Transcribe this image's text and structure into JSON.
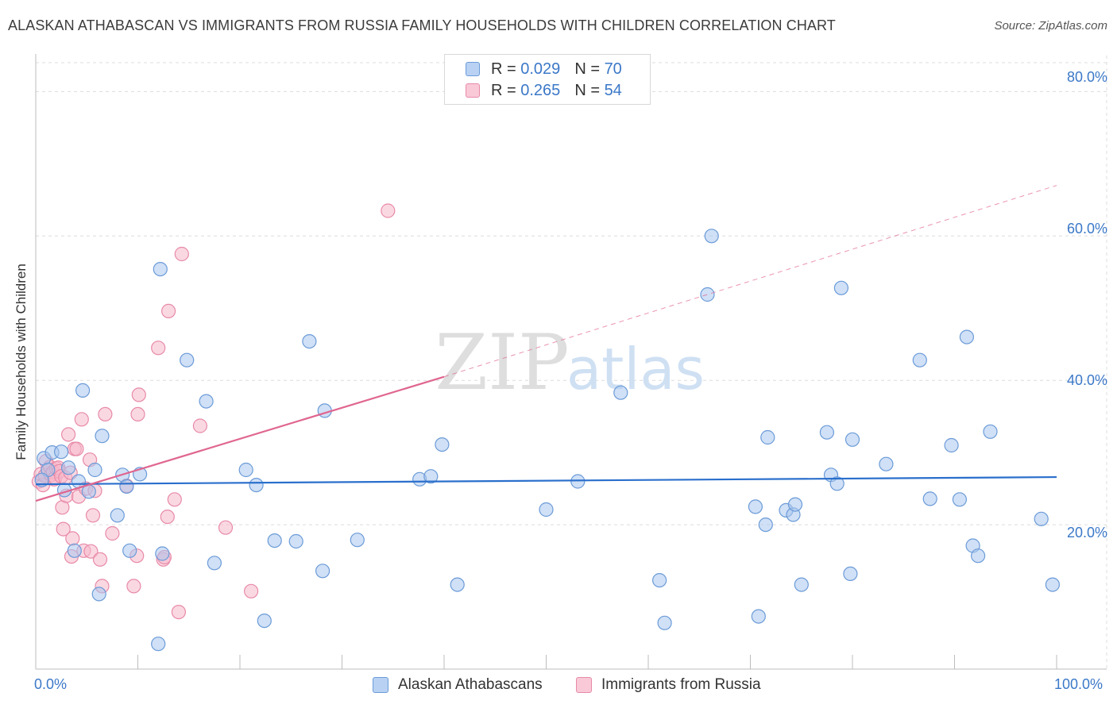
{
  "title": "ALASKAN ATHABASCAN VS IMMIGRANTS FROM RUSSIA FAMILY HOUSEHOLDS WITH CHILDREN CORRELATION CHART",
  "source": "Source: ZipAtlas.com",
  "watermark": {
    "zip": "ZIP",
    "atlas": "atlas"
  },
  "legend": {
    "r_label": "R =",
    "n_label": "N =",
    "series": [
      {
        "r": "0.029",
        "n": "70"
      },
      {
        "r": "0.265",
        "n": "54"
      }
    ]
  },
  "colors": {
    "blue_fill": "#a9c7ee",
    "blue_stroke": "#6b9bd8",
    "blue_line": "#2a6fcc",
    "pink_fill": "#f5b8cb",
    "pink_stroke": "#e88aa8",
    "pink_line": "#e06690",
    "tick_text": "#3b78c8"
  },
  "chart_data": {
    "type": "scatter",
    "title": "ALASKAN ATHABASCAN VS IMMIGRANTS FROM RUSSIA FAMILY HOUSEHOLDS WITH CHILDREN CORRELATION CHART",
    "xlabel": "",
    "ylabel": "Family Households with Children",
    "xlim": [
      0,
      100
    ],
    "ylim": [
      0,
      84
    ],
    "x_tick_labels": [
      "0.0%",
      "100.0%"
    ],
    "y_ticks": [
      20,
      40,
      60,
      80
    ],
    "y_tick_labels": [
      "20.0%",
      "40.0%",
      "60.0%",
      "80.0%"
    ],
    "grid": true,
    "legend_position": "top-center",
    "series": [
      {
        "name": "Alaskan Athabascans",
        "r": 0.029,
        "n": 70,
        "trend": {
          "x0": 0,
          "y0": 25.6,
          "x1": 100,
          "y1": 26.6,
          "dashed_extension": false
        },
        "points": [
          [
            0.8,
            29.2
          ],
          [
            1.2,
            27.6
          ],
          [
            1.6,
            30.0
          ],
          [
            2.5,
            30.1
          ],
          [
            2.8,
            24.8
          ],
          [
            3.2,
            27.9
          ],
          [
            3.8,
            16.4
          ],
          [
            4.2,
            26.0
          ],
          [
            4.6,
            38.6
          ],
          [
            5.2,
            24.6
          ],
          [
            5.8,
            27.6
          ],
          [
            6.2,
            10.4
          ],
          [
            6.5,
            32.3
          ],
          [
            8.0,
            21.3
          ],
          [
            8.5,
            26.9
          ],
          [
            8.9,
            25.3
          ],
          [
            9.2,
            16.4
          ],
          [
            10.2,
            27.0
          ],
          [
            12.0,
            3.5
          ],
          [
            12.2,
            55.4
          ],
          [
            12.4,
            16.0
          ],
          [
            14.8,
            42.8
          ],
          [
            16.7,
            37.1
          ],
          [
            17.5,
            14.7
          ],
          [
            20.6,
            27.6
          ],
          [
            21.6,
            25.5
          ],
          [
            22.4,
            6.7
          ],
          [
            23.4,
            17.8
          ],
          [
            25.5,
            17.7
          ],
          [
            26.8,
            45.4
          ],
          [
            28.1,
            13.6
          ],
          [
            28.3,
            35.8
          ],
          [
            31.5,
            17.9
          ],
          [
            37.6,
            26.3
          ],
          [
            38.7,
            26.7
          ],
          [
            39.8,
            31.1
          ],
          [
            41.3,
            11.7
          ],
          [
            50.0,
            22.1
          ],
          [
            53.1,
            26.0
          ],
          [
            57.3,
            38.3
          ],
          [
            61.1,
            12.3
          ],
          [
            61.6,
            6.4
          ],
          [
            65.8,
            51.9
          ],
          [
            66.2,
            60.0
          ],
          [
            70.5,
            22.5
          ],
          [
            70.8,
            7.3
          ],
          [
            71.5,
            20.0
          ],
          [
            71.7,
            32.1
          ],
          [
            73.5,
            22.0
          ],
          [
            74.2,
            21.4
          ],
          [
            74.4,
            22.8
          ],
          [
            75.0,
            11.7
          ],
          [
            77.5,
            32.8
          ],
          [
            77.9,
            26.9
          ],
          [
            78.5,
            25.7
          ],
          [
            78.9,
            52.8
          ],
          [
            79.8,
            13.2
          ],
          [
            80.0,
            31.8
          ],
          [
            83.3,
            28.4
          ],
          [
            86.6,
            42.8
          ],
          [
            87.6,
            23.6
          ],
          [
            89.7,
            31.0
          ],
          [
            90.5,
            23.5
          ],
          [
            91.2,
            46.0
          ],
          [
            91.8,
            17.1
          ],
          [
            92.3,
            15.7
          ],
          [
            93.5,
            32.9
          ],
          [
            98.5,
            20.8
          ],
          [
            99.6,
            11.7
          ],
          [
            0.6,
            26.2
          ]
        ]
      },
      {
        "name": "Immigrants from Russia",
        "r": 0.265,
        "n": 54,
        "trend": {
          "x0": 0,
          "y0": 23.3,
          "x1": 40,
          "y1": 40.5,
          "dash_x1": 100,
          "dash_y1": 67.0,
          "dashed_extension": true
        },
        "points": [
          [
            0.3,
            26.0
          ],
          [
            0.5,
            27.0
          ],
          [
            0.7,
            25.5
          ],
          [
            0.9,
            26.8
          ],
          [
            1.0,
            28.8
          ],
          [
            1.2,
            27.6
          ],
          [
            1.4,
            28.0
          ],
          [
            1.5,
            26.9
          ],
          [
            1.7,
            27.3
          ],
          [
            1.8,
            26.3
          ],
          [
            1.9,
            26.5
          ],
          [
            2.0,
            27.8
          ],
          [
            2.2,
            27.9
          ],
          [
            2.3,
            27.4
          ],
          [
            2.5,
            26.7
          ],
          [
            2.6,
            22.4
          ],
          [
            2.7,
            19.4
          ],
          [
            2.9,
            26.5
          ],
          [
            3.0,
            24.0
          ],
          [
            3.2,
            32.5
          ],
          [
            3.4,
            27.2
          ],
          [
            3.5,
            15.6
          ],
          [
            3.6,
            18.1
          ],
          [
            3.8,
            30.5
          ],
          [
            4.0,
            30.5
          ],
          [
            4.2,
            23.9
          ],
          [
            4.5,
            34.6
          ],
          [
            4.7,
            16.4
          ],
          [
            4.9,
            25.0
          ],
          [
            5.3,
            29.0
          ],
          [
            5.4,
            16.3
          ],
          [
            5.6,
            21.3
          ],
          [
            5.8,
            24.7
          ],
          [
            6.3,
            15.2
          ],
          [
            6.5,
            11.5
          ],
          [
            6.8,
            35.3
          ],
          [
            7.5,
            18.8
          ],
          [
            8.9,
            25.4
          ],
          [
            9.6,
            11.5
          ],
          [
            9.9,
            15.7
          ],
          [
            10.0,
            35.3
          ],
          [
            10.1,
            38.0
          ],
          [
            12.0,
            44.5
          ],
          [
            12.5,
            15.2
          ],
          [
            12.6,
            15.5
          ],
          [
            12.9,
            21.1
          ],
          [
            13.0,
            49.6
          ],
          [
            13.6,
            23.5
          ],
          [
            14.0,
            7.9
          ],
          [
            14.3,
            57.5
          ],
          [
            16.1,
            33.7
          ],
          [
            18.6,
            19.6
          ],
          [
            21.1,
            10.8
          ],
          [
            34.5,
            63.5
          ]
        ]
      }
    ]
  }
}
